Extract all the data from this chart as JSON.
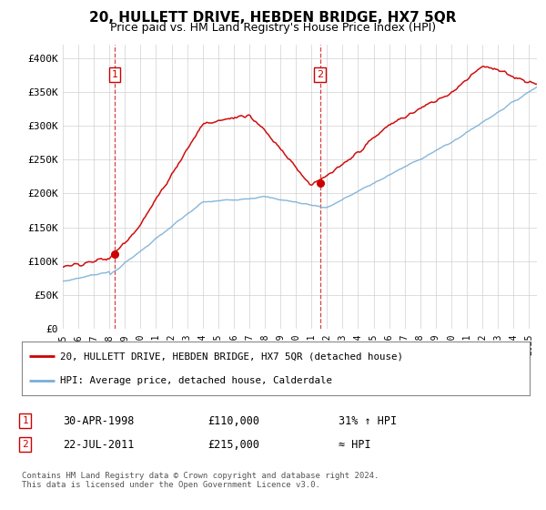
{
  "title": "20, HULLETT DRIVE, HEBDEN BRIDGE, HX7 5QR",
  "subtitle": "Price paid vs. HM Land Registry's House Price Index (HPI)",
  "ylabel_ticks": [
    "£0",
    "£50K",
    "£100K",
    "£150K",
    "£200K",
    "£250K",
    "£300K",
    "£350K",
    "£400K"
  ],
  "ytick_vals": [
    0,
    50000,
    100000,
    150000,
    200000,
    250000,
    300000,
    350000,
    400000
  ],
  "ylim": [
    0,
    420000
  ],
  "xlim_start": 1995.0,
  "xlim_end": 2025.5,
  "sale1_date": 1998.33,
  "sale1_price": 110000,
  "sale2_date": 2011.55,
  "sale2_price": 215000,
  "legend_line1": "20, HULLETT DRIVE, HEBDEN BRIDGE, HX7 5QR (detached house)",
  "legend_line2": "HPI: Average price, detached house, Calderdale",
  "table_row1_num": "1",
  "table_row1_date": "30-APR-1998",
  "table_row1_price": "£110,000",
  "table_row1_hpi": "31% ↑ HPI",
  "table_row2_num": "2",
  "table_row2_date": "22-JUL-2011",
  "table_row2_price": "£215,000",
  "table_row2_hpi": "≈ HPI",
  "footer": "Contains HM Land Registry data © Crown copyright and database right 2024.\nThis data is licensed under the Open Government Licence v3.0.",
  "line_color_red": "#cc0000",
  "line_color_blue": "#7aaed6",
  "vline_color": "#cc0000",
  "background_color": "#ffffff",
  "grid_color": "#cccccc"
}
